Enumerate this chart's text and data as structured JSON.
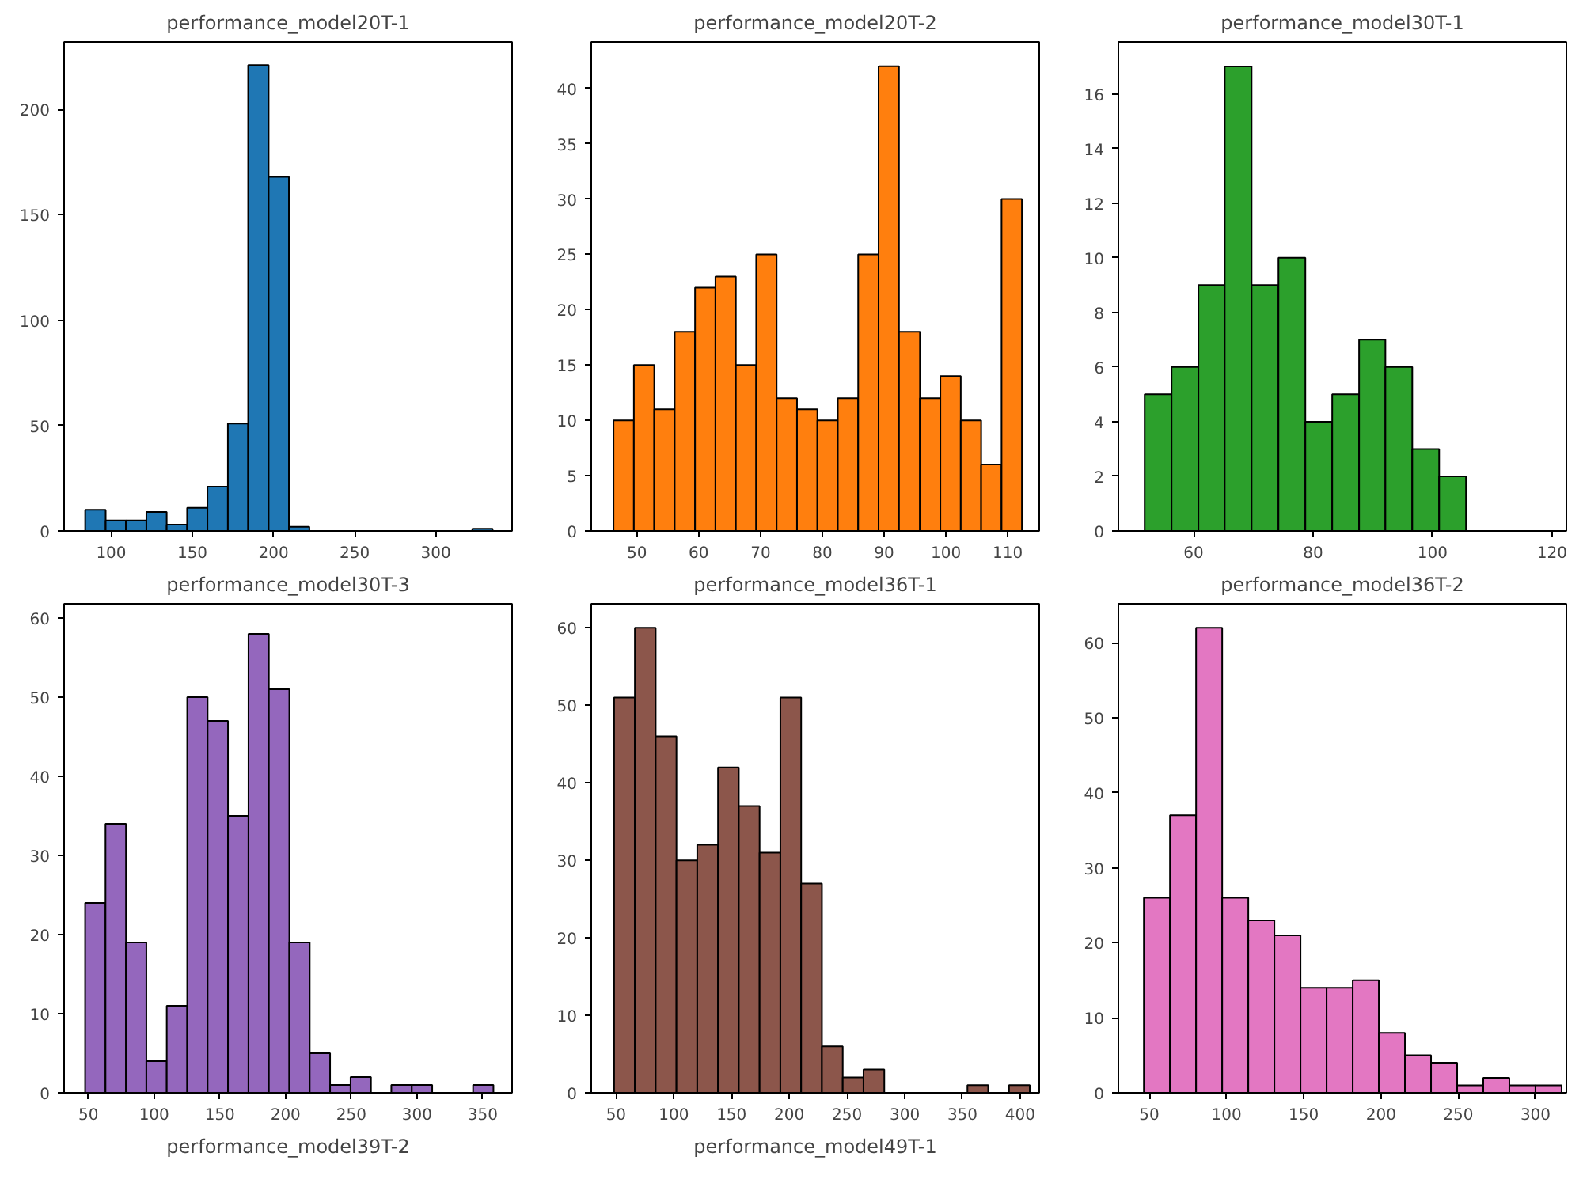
{
  "chart_data": [
    {
      "type": "histogram",
      "title": "performance_model20T-1",
      "color": "#1f77b4",
      "bins": [
        84,
        96.6,
        109.1,
        121.7,
        134.2,
        146.8,
        159.3,
        171.9,
        184.4,
        197,
        209.5,
        222.1,
        234.6,
        247.2,
        259.7,
        272.3,
        284.8,
        297.4,
        309.9,
        322.5,
        335
      ],
      "values": [
        10,
        5,
        5,
        9,
        3,
        11,
        21,
        51,
        221,
        168,
        2,
        0,
        0,
        0,
        0,
        0,
        0,
        0,
        0,
        1
      ],
      "xlim": [
        71,
        347
      ],
      "ylim": [
        0,
        232
      ],
      "xticks": [
        100,
        150,
        200,
        250,
        300
      ],
      "yticks": [
        0,
        50,
        100,
        150,
        200
      ],
      "grid": false
    },
    {
      "type": "histogram",
      "title": "performance_model20T-2",
      "color": "#ff7f0e",
      "bins": [
        46.2,
        49.5,
        52.8,
        56.1,
        59.4,
        62.7,
        66,
        69.3,
        72.6,
        75.9,
        79.2,
        82.5,
        85.8,
        89.1,
        92.4,
        95.8,
        99.1,
        102.4,
        105.7,
        109,
        112.3
      ],
      "values": [
        10,
        15,
        11,
        18,
        22,
        23,
        15,
        25,
        12,
        11,
        10,
        12,
        25,
        42,
        18,
        12,
        14,
        10,
        6,
        30
      ],
      "xlim": [
        42.6,
        115.1
      ],
      "ylim": [
        0,
        44.2
      ],
      "xticks": [
        50,
        60,
        70,
        80,
        90,
        100,
        110
      ],
      "yticks": [
        0,
        5,
        10,
        15,
        20,
        25,
        30,
        35,
        40
      ],
      "grid": false
    },
    {
      "type": "histogram",
      "title": "performance_model30T-1",
      "color": "#2ca02c",
      "bins": [
        51.8,
        56.3,
        60.8,
        65.2,
        69.7,
        74.2,
        78.7,
        83.2,
        87.7,
        92.1,
        96.6,
        101.1,
        105.6
      ],
      "values": [
        5,
        6,
        9,
        17,
        9,
        10,
        4,
        5,
        7,
        6,
        3,
        2
      ],
      "xlim": [
        47.4,
        122.4
      ],
      "ylim": [
        0,
        17.9
      ],
      "xticks": [
        60,
        80,
        100,
        120
      ],
      "yticks": [
        0,
        2,
        4,
        6,
        8,
        10,
        12,
        14,
        16
      ],
      "grid": false
    },
    {
      "type": "histogram",
      "title": "performance_model30T-3",
      "color": "#9467bd",
      "bins": [
        47.5,
        63,
        78.6,
        94.1,
        109.6,
        125.2,
        140.7,
        156.2,
        171.8,
        187.3,
        202.9,
        218.4,
        233.9,
        249.5,
        265,
        280.5,
        296.1,
        311.6,
        327.1,
        342.7,
        358.2
      ],
      "values": [
        24,
        34,
        19,
        4,
        11,
        50,
        47,
        35,
        58,
        51,
        19,
        5,
        1,
        2,
        0,
        1,
        1,
        0,
        0,
        1
      ],
      "xlim": [
        31.5,
        372.4
      ],
      "ylim": [
        0,
        61.8
      ],
      "xticks": [
        50,
        100,
        150,
        200,
        250,
        300,
        350
      ],
      "yticks": [
        0,
        10,
        20,
        30,
        40,
        50,
        60
      ],
      "grid": false
    },
    {
      "type": "histogram",
      "title": "performance_model36T-1",
      "color": "#8c564b",
      "bins": [
        48.3,
        66.3,
        84.3,
        102.3,
        120.3,
        138.3,
        156.3,
        174.3,
        192.3,
        210.3,
        228.3,
        246.3,
        264.3,
        282.3,
        300.3,
        318.3,
        336.3,
        354.3,
        372.3,
        390.3,
        408.3
      ],
      "values": [
        51,
        60,
        46,
        30,
        32,
        42,
        37,
        31,
        51,
        27,
        6,
        2,
        3,
        0,
        0,
        0,
        0,
        1,
        0,
        1
      ],
      "xlim": [
        28.5,
        416.5
      ],
      "ylim": [
        0,
        63.1
      ],
      "xticks": [
        50,
        100,
        150,
        200,
        250,
        300,
        350,
        400
      ],
      "yticks": [
        0,
        10,
        20,
        30,
        40,
        50,
        60
      ],
      "grid": false
    },
    {
      "type": "histogram",
      "title": "performance_model36T-2",
      "color": "#e377c2",
      "bins": [
        46.5,
        63.4,
        80.3,
        97.2,
        114.1,
        131,
        147.9,
        164.8,
        181.7,
        198.6,
        215.5,
        232.4,
        249.3,
        266.2,
        283.1,
        300,
        316.9
      ],
      "values": [
        26,
        37,
        62,
        26,
        23,
        21,
        14,
        14,
        15,
        8,
        5,
        4,
        1,
        2,
        1,
        1
      ],
      "xlim": [
        30,
        320
      ],
      "ylim": [
        0,
        65.2
      ],
      "xticks": [
        50,
        100,
        150,
        200,
        250,
        300
      ],
      "yticks": [
        0,
        10,
        20,
        30,
        40,
        50,
        60
      ],
      "grid": false
    },
    {
      "type": "other",
      "title": "performance_model39T-2"
    },
    {
      "type": "other",
      "title": "performance_model49T-1"
    }
  ]
}
